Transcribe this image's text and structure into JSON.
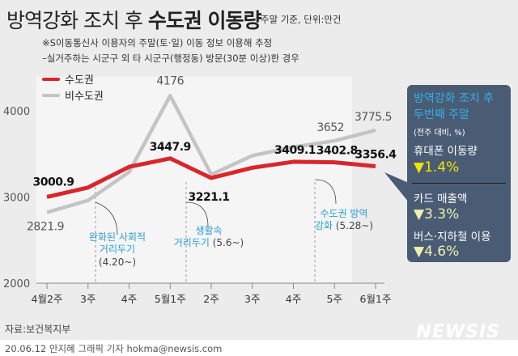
{
  "header": {
    "title_plain": "방역강화 조치 후 ",
    "title_bold": "수도권 이동량",
    "unit": "주말 기준, 단위:만건"
  },
  "notes": [
    "※S이동통신사 이용자의 주말(토·일) 이동 정보 이용해 추정",
    "–실거주하는 시군구 외 타 시군구(행정동) 방문(30분 이상)한 경우"
  ],
  "chart_data": {
    "type": "line",
    "title": "방역강화 조치 후 수도권 이동량",
    "categories": [
      "4월2주",
      "3주",
      "4주",
      "5월1주",
      "2주",
      "3주",
      "4주",
      "5주",
      "6월1주"
    ],
    "ylim": [
      2000,
      4000
    ],
    "yticks": [
      "2000",
      "3000",
      "4000"
    ],
    "grid": false,
    "legend": "top-left",
    "series": [
      {
        "name": "수도권",
        "color": "#d9262b",
        "values": [
          3000.9,
          3110,
          3350,
          3447.9,
          3221.1,
          3340,
          3409.1,
          3402.8,
          3356.4
        ],
        "labels": [
          "3000.9",
          null,
          null,
          "3447.9",
          "3221.1",
          null,
          "3409.1",
          "3402.8",
          "3356.4"
        ]
      },
      {
        "name": "비수도권",
        "color": "#c4c4c4",
        "values": [
          2821.9,
          2960,
          3290,
          4176,
          3260,
          3480,
          3580,
          3652,
          3775.5
        ],
        "labels": [
          "2821.9",
          null,
          null,
          "4176",
          null,
          null,
          null,
          "3652",
          "3775.5"
        ]
      }
    ],
    "annotations": [
      {
        "text": "완화된 사회적\n거리두기",
        "sub": "(4.20~)"
      },
      {
        "text": "생활속\n거리두기",
        "sub": "(5.6~)"
      },
      {
        "text": "수도권 방역\n강화",
        "sub": "(5.28~)"
      }
    ]
  },
  "callout": {
    "title1": "방역강화 조치 후",
    "title2": "두번째 주말",
    "sub": "(전주 대비, %)",
    "items": [
      {
        "label": "휴대폰 이동량",
        "value": "▼1.4%",
        "color": "#f2e600"
      },
      {
        "label": "카드 매출액",
        "value": "▼3.3%",
        "color": "#eef0b0"
      },
      {
        "label": "버스·지하철 이용",
        "value": "▼4.6%",
        "color": "#eef0b0"
      }
    ]
  },
  "source": "자료:보건복지부",
  "credit": "20.06.12 안지혜 그래픽 기자 hokma@newsis.com",
  "logo": "NEWSIS"
}
